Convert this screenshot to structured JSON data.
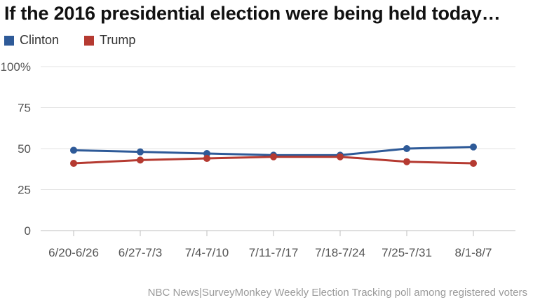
{
  "title": "If the 2016 presidential election were being held today…",
  "source": "NBC News|SurveyMonkey Weekly Election Tracking poll among registered voters",
  "chart_data": {
    "type": "line",
    "title": "If the 2016 presidential election were being held today…",
    "categories": [
      "6/20-6/26",
      "6/27-7/3",
      "7/4-7/10",
      "7/11-7/17",
      "7/18-7/24",
      "7/25-7/31",
      "8/1-8/7"
    ],
    "series": [
      {
        "name": "Clinton",
        "color": "#2e5a98",
        "values": [
          49,
          48,
          47,
          46,
          46,
          50,
          51
        ]
      },
      {
        "name": "Trump",
        "color": "#b53a31",
        "values": [
          41,
          43,
          44,
          45,
          45,
          42,
          41
        ]
      }
    ],
    "yticks": [
      "0",
      "25",
      "50",
      "75",
      "100%"
    ],
    "ylim": [
      0,
      100
    ],
    "grid": true,
    "legend": "top-left",
    "xlabel": "",
    "ylabel": ""
  }
}
